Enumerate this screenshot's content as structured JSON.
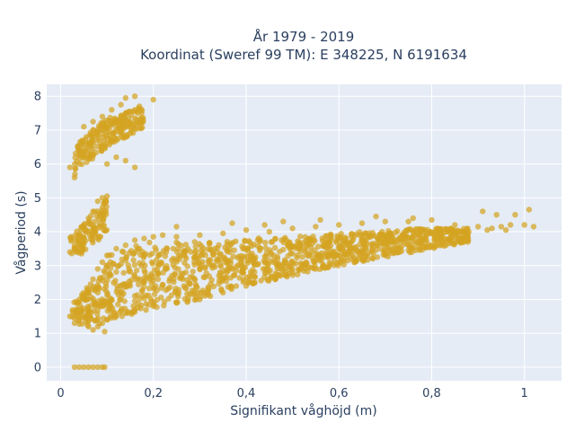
{
  "chart_data": {
    "type": "scatter",
    "title_line1": "År 1979 - 2019",
    "title_line2": "Koordinat (Sweref 99 TM): E 348225, N 6191634",
    "xlabel": "Signifikant våghöjd (m)",
    "ylabel": "Vågperiod (s)",
    "xlim": [
      -0.03,
      1.08
    ],
    "ylim": [
      -0.4,
      8.35
    ],
    "x_ticks": [
      0,
      0.2,
      0.4,
      0.6,
      0.8,
      1
    ],
    "x_tick_labels": [
      "0",
      "0,2",
      "0,4",
      "0,6",
      "0,8",
      "1"
    ],
    "y_ticks": [
      0,
      1,
      2,
      3,
      4,
      5,
      6,
      7,
      8
    ],
    "y_tick_labels": [
      "0",
      "1",
      "2",
      "3",
      "4",
      "5",
      "6",
      "7",
      "8"
    ],
    "grid": true,
    "legend": "none",
    "marker_color": "#D4A321",
    "series": [
      {
        "points": [
          [
            0.03,
            0
          ],
          [
            0.04,
            0
          ],
          [
            0.05,
            0
          ],
          [
            0.06,
            0
          ],
          [
            0.07,
            0
          ],
          [
            0.08,
            0
          ],
          [
            0.09,
            0
          ],
          [
            0.095,
            0
          ],
          [
            0.02,
            1.5
          ],
          [
            0.03,
            1.3
          ],
          [
            0.035,
            1.6
          ],
          [
            0.04,
            1.4
          ],
          [
            0.05,
            1.5
          ],
          [
            0.06,
            1.2
          ],
          [
            0.07,
            1.1
          ],
          [
            0.08,
            1.2
          ],
          [
            0.09,
            1.3
          ],
          [
            0.095,
            1.05
          ],
          [
            0.1,
            1.4
          ],
          [
            0.12,
            1.5
          ],
          [
            0.14,
            1.6
          ],
          [
            0.16,
            1.7
          ],
          [
            0.2,
            1.8
          ],
          [
            0.25,
            1.9
          ],
          [
            0.3,
            2.0
          ],
          [
            0.35,
            2.2
          ],
          [
            0.4,
            2.4
          ],
          [
            0.45,
            2.6
          ],
          [
            0.5,
            2.8
          ],
          [
            0.55,
            2.9
          ],
          [
            0.6,
            3.1
          ],
          [
            0.65,
            3.2
          ],
          [
            0.7,
            3.35
          ],
          [
            0.75,
            3.45
          ],
          [
            0.8,
            3.6
          ],
          [
            0.05,
            2.0
          ],
          [
            0.06,
            2.3
          ],
          [
            0.07,
            2.6
          ],
          [
            0.08,
            2.9
          ],
          [
            0.09,
            3.1
          ],
          [
            0.1,
            3.3
          ],
          [
            0.12,
            3.5
          ],
          [
            0.14,
            3.6
          ],
          [
            0.16,
            3.75
          ],
          [
            0.18,
            3.8
          ],
          [
            0.2,
            3.85
          ],
          [
            0.22,
            3.9
          ],
          [
            0.25,
            3.85
          ],
          [
            0.3,
            3.9
          ],
          [
            0.35,
            3.95
          ],
          [
            0.4,
            4.05
          ],
          [
            0.45,
            4.0
          ],
          [
            0.5,
            4.1
          ],
          [
            0.55,
            4.15
          ],
          [
            0.6,
            4.2
          ],
          [
            0.65,
            4.25
          ],
          [
            0.7,
            4.3
          ],
          [
            0.75,
            4.3
          ],
          [
            0.8,
            4.35
          ],
          [
            0.85,
            4.2
          ],
          [
            0.9,
            4.15
          ],
          [
            0.93,
            4.1
          ],
          [
            0.95,
            4.15
          ],
          [
            0.97,
            4.2
          ],
          [
            1.0,
            4.2
          ],
          [
            1.02,
            4.15
          ],
          [
            0.85,
            3.95
          ],
          [
            0.88,
            4.0
          ],
          [
            0.92,
            4.05
          ],
          [
            0.96,
            4.05
          ],
          [
            0.09,
            1.8
          ],
          [
            0.11,
            2.0
          ],
          [
            0.13,
            2.2
          ],
          [
            0.15,
            2.4
          ],
          [
            0.18,
            2.5
          ],
          [
            0.21,
            2.6
          ],
          [
            0.24,
            2.7
          ],
          [
            0.27,
            2.8
          ],
          [
            0.3,
            2.9
          ],
          [
            0.33,
            3.0
          ],
          [
            0.36,
            3.1
          ],
          [
            0.39,
            3.2
          ],
          [
            0.42,
            3.25
          ],
          [
            0.46,
            3.3
          ],
          [
            0.5,
            3.35
          ],
          [
            0.54,
            3.4
          ],
          [
            0.58,
            3.5
          ],
          [
            0.62,
            3.6
          ],
          [
            0.66,
            3.65
          ],
          [
            0.7,
            3.7
          ],
          [
            0.74,
            3.8
          ],
          [
            0.78,
            3.85
          ],
          [
            0.02,
            3.4
          ],
          [
            0.03,
            3.6
          ],
          [
            0.04,
            3.9
          ],
          [
            0.05,
            4.2
          ],
          [
            0.06,
            4.4
          ],
          [
            0.07,
            4.6
          ],
          [
            0.08,
            4.9
          ],
          [
            0.09,
            5.0
          ],
          [
            0.1,
            5.05
          ],
          [
            0.02,
            5.9
          ],
          [
            0.03,
            5.6
          ],
          [
            0.04,
            6.0
          ],
          [
            0.05,
            6.3
          ],
          [
            0.06,
            6.6
          ],
          [
            0.07,
            6.8
          ],
          [
            0.08,
            6.9
          ],
          [
            0.09,
            7.0
          ],
          [
            0.1,
            7.1
          ],
          [
            0.11,
            7.2
          ],
          [
            0.12,
            7.3
          ],
          [
            0.13,
            7.4
          ],
          [
            0.14,
            7.5
          ],
          [
            0.15,
            7.55
          ],
          [
            0.16,
            7.6
          ],
          [
            0.17,
            7.7
          ],
          [
            0.05,
            7.1
          ],
          [
            0.07,
            7.25
          ],
          [
            0.09,
            7.4
          ],
          [
            0.11,
            7.6
          ],
          [
            0.13,
            7.75
          ],
          [
            0.14,
            7.95
          ],
          [
            0.16,
            8.0
          ],
          [
            0.2,
            7.9
          ],
          [
            0.1,
            6.0
          ],
          [
            0.12,
            6.2
          ],
          [
            0.14,
            6.1
          ],
          [
            0.16,
            5.9
          ],
          [
            0.25,
            4.15
          ],
          [
            0.37,
            4.25
          ],
          [
            0.44,
            4.2
          ],
          [
            0.48,
            4.3
          ],
          [
            0.56,
            4.35
          ],
          [
            0.68,
            4.45
          ],
          [
            0.76,
            4.4
          ],
          [
            0.91,
            4.6
          ],
          [
            0.94,
            4.5
          ],
          [
            0.98,
            4.5
          ],
          [
            1.01,
            4.65
          ]
        ],
        "bands": [
          {
            "x": [
              0.025,
              0.075
            ],
            "ylo_start": 1.3,
            "ylo_end": 1.2,
            "yhi_start": 1.9,
            "yhi_end": 2.6
          },
          {
            "x": [
              0.07,
              0.11
            ],
            "ylo_start": 1.2,
            "ylo_end": 1.4,
            "yhi_start": 2.3,
            "yhi_end": 3.3
          },
          {
            "x": [
              0.1,
              0.2
            ],
            "ylo_start": 1.4,
            "ylo_end": 1.7,
            "yhi_start": 3.3,
            "yhi_end": 3.8
          },
          {
            "x": [
              0.2,
              0.3
            ],
            "ylo_start": 1.7,
            "ylo_end": 2.0,
            "yhi_start": 3.7,
            "yhi_end": 3.7
          },
          {
            "x": [
              0.3,
              0.4
            ],
            "ylo_start": 2.0,
            "ylo_end": 2.4,
            "yhi_start": 3.7,
            "yhi_end": 3.8
          },
          {
            "x": [
              0.4,
              0.5
            ],
            "ylo_start": 2.4,
            "ylo_end": 2.7,
            "yhi_start": 3.8,
            "yhi_end": 3.85
          },
          {
            "x": [
              0.5,
              0.6
            ],
            "ylo_start": 2.7,
            "ylo_end": 3.0,
            "yhi_start": 3.85,
            "yhi_end": 3.95
          },
          {
            "x": [
              0.6,
              0.7
            ],
            "ylo_start": 3.0,
            "ylo_end": 3.25,
            "yhi_start": 3.95,
            "yhi_end": 4.05
          },
          {
            "x": [
              0.7,
              0.8
            ],
            "ylo_start": 3.25,
            "ylo_end": 3.5,
            "yhi_start": 4.05,
            "yhi_end": 4.1
          },
          {
            "x": [
              0.8,
              0.88
            ],
            "ylo_start": 3.5,
            "ylo_end": 3.7,
            "yhi_start": 4.1,
            "yhi_end": 4.1
          },
          {
            "x": [
              0.02,
              0.05
            ],
            "ylo_start": 3.3,
            "ylo_end": 3.3,
            "yhi_start": 3.9,
            "yhi_end": 4.3
          },
          {
            "x": [
              0.05,
              0.1
            ],
            "ylo_start": 3.3,
            "ylo_end": 4.0,
            "yhi_start": 4.3,
            "yhi_end": 5.0
          },
          {
            "x": [
              0.03,
              0.09
            ],
            "ylo_start": 5.6,
            "ylo_end": 6.4,
            "yhi_start": 6.5,
            "yhi_end": 7.3
          },
          {
            "x": [
              0.09,
              0.18
            ],
            "ylo_start": 6.4,
            "ylo_end": 7.1,
            "yhi_start": 7.3,
            "yhi_end": 7.7
          }
        ]
      }
    ]
  }
}
